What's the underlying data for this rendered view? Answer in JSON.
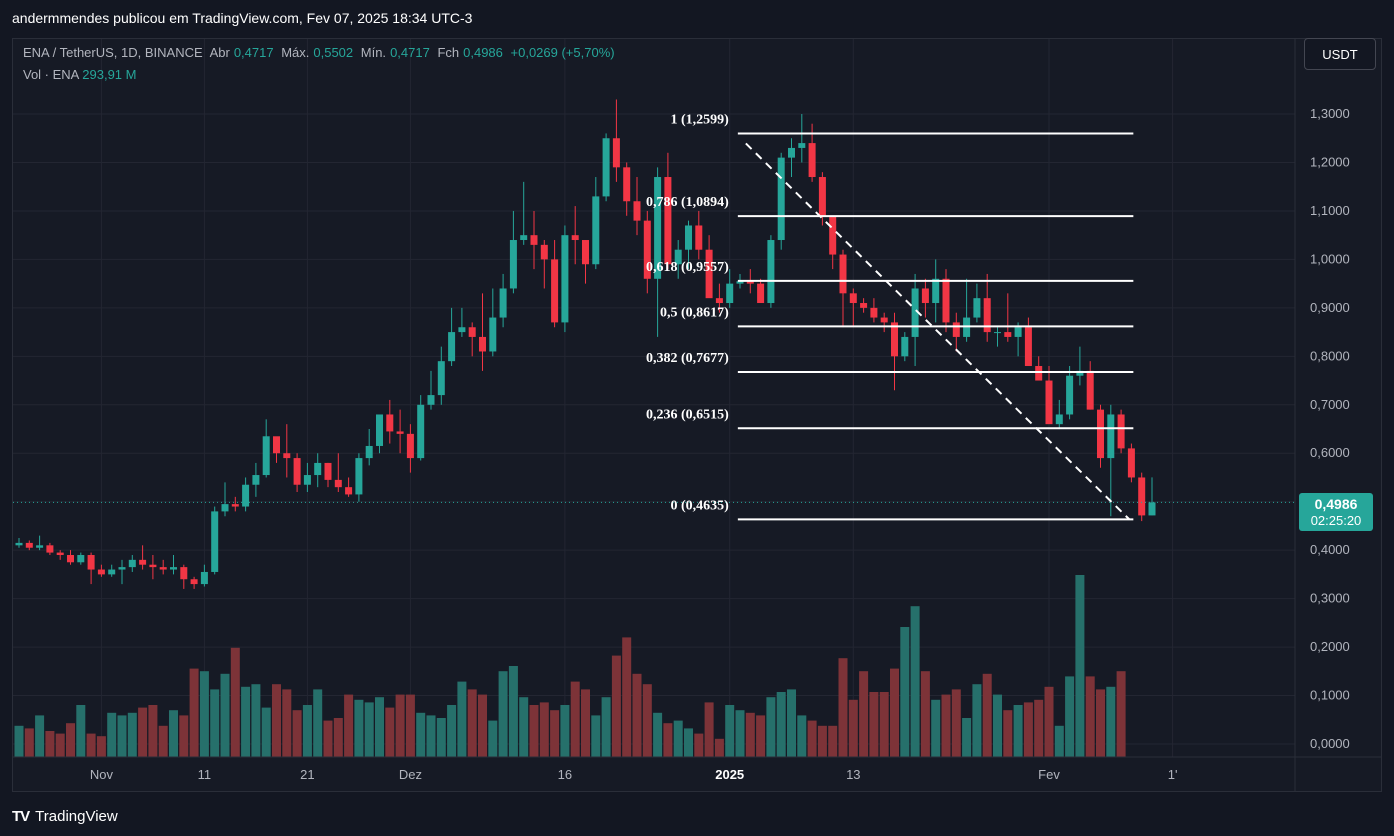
{
  "publisher_line": "andermmendes publicou em TradingView.com, Fev 07, 2025 18:34 UTC-3",
  "legend": {
    "symbol": "ENA / TetherUS, 1D, BINANCE",
    "open_label": "Abr",
    "open": "0,4717",
    "high_label": "Máx.",
    "high": "0,5502",
    "low_label": "Mín.",
    "low": "0,4717",
    "close_label": "Fch",
    "close": "0,4986",
    "change": "+0,0269 (+5,70%)",
    "vol_label": "Vol · ENA",
    "vol": "293,91 M"
  },
  "currency_button": "USDT",
  "last_price": {
    "price": "0,4986",
    "countdown": "02:25:20"
  },
  "footer": {
    "logo": "TV",
    "brand": "TradingView"
  },
  "colors": {
    "up": "#26a69a",
    "down": "#f23645",
    "vol_up": "#26706b",
    "vol_down": "#7d3338",
    "fib_line": "#ffffff"
  },
  "chart_data": {
    "type": "candlestick",
    "price_axis": {
      "min": 0,
      "max": 1.3,
      "ticks": [
        "1,3000",
        "1,2000",
        "1,1000",
        "1,0000",
        "0,9000",
        "0,8000",
        "0,7000",
        "0,6000",
        "0,5000",
        "0,4000",
        "0,3000",
        "0,2000",
        "0,1000",
        "0,0000"
      ]
    },
    "time_axis_labels": [
      {
        "label": "Nov",
        "index": 8
      },
      {
        "label": "11",
        "index": 18
      },
      {
        "label": "21",
        "index": 28
      },
      {
        "label": "Dez",
        "index": 38
      },
      {
        "label": "16",
        "index": 53
      },
      {
        "label": "2025",
        "index": 69
      },
      {
        "label": "13",
        "index": 81
      },
      {
        "label": "Fev",
        "index": 100
      },
      {
        "label": "1'",
        "index": 112
      }
    ],
    "candles_ohlc": [
      [
        0.41,
        0.425,
        0.405,
        0.415
      ],
      [
        0.415,
        0.42,
        0.4,
        0.405
      ],
      [
        0.405,
        0.43,
        0.4,
        0.41
      ],
      [
        0.41,
        0.415,
        0.39,
        0.395
      ],
      [
        0.395,
        0.4,
        0.38,
        0.39
      ],
      [
        0.39,
        0.4,
        0.37,
        0.375
      ],
      [
        0.375,
        0.395,
        0.37,
        0.39
      ],
      [
        0.39,
        0.395,
        0.33,
        0.36
      ],
      [
        0.36,
        0.37,
        0.345,
        0.35
      ],
      [
        0.35,
        0.37,
        0.345,
        0.36
      ],
      [
        0.36,
        0.38,
        0.33,
        0.365
      ],
      [
        0.365,
        0.39,
        0.355,
        0.38
      ],
      [
        0.38,
        0.41,
        0.36,
        0.37
      ],
      [
        0.37,
        0.39,
        0.34,
        0.365
      ],
      [
        0.365,
        0.38,
        0.35,
        0.36
      ],
      [
        0.36,
        0.39,
        0.35,
        0.365
      ],
      [
        0.365,
        0.37,
        0.32,
        0.34
      ],
      [
        0.34,
        0.345,
        0.32,
        0.33
      ],
      [
        0.33,
        0.37,
        0.325,
        0.355
      ],
      [
        0.355,
        0.49,
        0.35,
        0.48
      ],
      [
        0.48,
        0.54,
        0.47,
        0.495
      ],
      [
        0.495,
        0.51,
        0.48,
        0.49
      ],
      [
        0.49,
        0.55,
        0.48,
        0.535
      ],
      [
        0.535,
        0.58,
        0.51,
        0.555
      ],
      [
        0.555,
        0.67,
        0.55,
        0.635
      ],
      [
        0.635,
        0.62,
        0.58,
        0.6
      ],
      [
        0.6,
        0.66,
        0.55,
        0.59
      ],
      [
        0.59,
        0.6,
        0.52,
        0.535
      ],
      [
        0.535,
        0.58,
        0.52,
        0.555
      ],
      [
        0.555,
        0.6,
        0.53,
        0.58
      ],
      [
        0.58,
        0.58,
        0.53,
        0.545
      ],
      [
        0.545,
        0.6,
        0.52,
        0.53
      ],
      [
        0.53,
        0.55,
        0.51,
        0.515
      ],
      [
        0.515,
        0.6,
        0.5,
        0.59
      ],
      [
        0.59,
        0.65,
        0.575,
        0.615
      ],
      [
        0.615,
        0.68,
        0.6,
        0.68
      ],
      [
        0.68,
        0.71,
        0.62,
        0.645
      ],
      [
        0.645,
        0.69,
        0.6,
        0.64
      ],
      [
        0.64,
        0.66,
        0.56,
        0.59
      ],
      [
        0.59,
        0.72,
        0.585,
        0.7
      ],
      [
        0.7,
        0.77,
        0.69,
        0.72
      ],
      [
        0.72,
        0.82,
        0.7,
        0.79
      ],
      [
        0.79,
        0.9,
        0.78,
        0.85
      ],
      [
        0.85,
        0.9,
        0.84,
        0.86
      ],
      [
        0.86,
        0.87,
        0.8,
        0.84
      ],
      [
        0.84,
        0.93,
        0.77,
        0.81
      ],
      [
        0.81,
        0.94,
        0.8,
        0.88
      ],
      [
        0.88,
        0.97,
        0.86,
        0.94
      ],
      [
        0.94,
        1.1,
        0.93,
        1.04
      ],
      [
        1.04,
        1.16,
        1.03,
        1.05
      ],
      [
        1.05,
        1.1,
        0.98,
        1.03
      ],
      [
        1.03,
        1.04,
        0.94,
        1.0
      ],
      [
        1.0,
        1.04,
        0.86,
        0.87
      ],
      [
        0.87,
        1.07,
        0.85,
        1.05
      ],
      [
        1.05,
        1.11,
        0.99,
        1.04
      ],
      [
        1.04,
        1.04,
        0.95,
        0.99
      ],
      [
        0.99,
        1.17,
        0.98,
        1.13
      ],
      [
        1.13,
        1.26,
        1.12,
        1.25
      ],
      [
        1.25,
        1.33,
        1.16,
        1.19
      ],
      [
        1.19,
        1.2,
        1.09,
        1.12
      ],
      [
        1.12,
        1.17,
        1.05,
        1.08
      ],
      [
        1.08,
        1.1,
        0.93,
        0.96
      ],
      [
        0.96,
        1.19,
        0.84,
        1.17
      ],
      [
        1.17,
        1.22,
        0.98,
        0.99
      ],
      [
        0.99,
        1.04,
        0.96,
        1.02
      ],
      [
        1.02,
        1.08,
        0.98,
        1.07
      ],
      [
        1.07,
        1.1,
        1.0,
        1.02
      ],
      [
        1.02,
        1.05,
        0.94,
        0.92
      ],
      [
        0.92,
        0.95,
        0.89,
        0.91
      ],
      [
        0.91,
        0.98,
        0.9,
        0.95
      ],
      [
        0.95,
        0.97,
        0.94,
        0.955
      ],
      [
        0.955,
        0.98,
        0.93,
        0.95
      ],
      [
        0.95,
        0.96,
        0.91,
        0.91
      ],
      [
        0.91,
        1.05,
        0.9,
        1.04
      ],
      [
        1.04,
        1.22,
        1.02,
        1.21
      ],
      [
        1.21,
        1.25,
        1.17,
        1.23
      ],
      [
        1.23,
        1.3,
        1.2,
        1.24
      ],
      [
        1.24,
        1.28,
        1.16,
        1.17
      ],
      [
        1.17,
        1.18,
        1.07,
        1.09
      ],
      [
        1.09,
        1.05,
        0.98,
        1.01
      ],
      [
        1.01,
        1.02,
        0.86,
        0.93
      ],
      [
        0.93,
        0.94,
        0.86,
        0.91
      ],
      [
        0.91,
        0.92,
        0.89,
        0.9
      ],
      [
        0.9,
        0.92,
        0.87,
        0.88
      ],
      [
        0.88,
        0.89,
        0.85,
        0.87
      ],
      [
        0.87,
        0.89,
        0.73,
        0.8
      ],
      [
        0.8,
        0.85,
        0.79,
        0.84
      ],
      [
        0.84,
        0.97,
        0.78,
        0.94
      ],
      [
        0.94,
        0.96,
        0.88,
        0.91
      ],
      [
        0.91,
        1.0,
        0.87,
        0.96
      ],
      [
        0.96,
        0.98,
        0.85,
        0.87
      ],
      [
        0.87,
        0.89,
        0.81,
        0.84
      ],
      [
        0.84,
        0.96,
        0.83,
        0.88
      ],
      [
        0.88,
        0.95,
        0.87,
        0.92
      ],
      [
        0.92,
        0.97,
        0.83,
        0.85
      ],
      [
        0.85,
        0.86,
        0.82,
        0.85
      ],
      [
        0.85,
        0.93,
        0.83,
        0.84
      ],
      [
        0.84,
        0.87,
        0.8,
        0.86
      ],
      [
        0.86,
        0.88,
        0.79,
        0.78
      ],
      [
        0.78,
        0.8,
        0.76,
        0.75
      ],
      [
        0.75,
        0.78,
        0.7,
        0.66
      ],
      [
        0.66,
        0.71,
        0.65,
        0.68
      ],
      [
        0.68,
        0.78,
        0.67,
        0.76
      ],
      [
        0.76,
        0.82,
        0.74,
        0.77
      ],
      [
        0.77,
        0.79,
        0.69,
        0.69
      ],
      [
        0.69,
        0.7,
        0.57,
        0.59
      ],
      [
        0.59,
        0.7,
        0.47,
        0.68
      ],
      [
        0.68,
        0.69,
        0.6,
        0.61
      ],
      [
        0.61,
        0.62,
        0.54,
        0.55
      ],
      [
        0.55,
        0.56,
        0.46,
        0.4717
      ],
      [
        0.4717,
        0.5502,
        0.4717,
        0.4986
      ]
    ],
    "volume_axis_max": 1.3,
    "volumes": [
      0.06,
      0.055,
      0.08,
      0.05,
      0.045,
      0.065,
      0.1,
      0.045,
      0.04,
      0.085,
      0.08,
      0.085,
      0.095,
      0.1,
      0.06,
      0.09,
      0.08,
      0.17,
      0.165,
      0.13,
      0.16,
      0.21,
      0.135,
      0.14,
      0.095,
      0.14,
      0.13,
      0.09,
      0.1,
      0.13,
      0.07,
      0.075,
      0.12,
      0.11,
      0.105,
      0.115,
      0.095,
      0.12,
      0.12,
      0.085,
      0.08,
      0.075,
      0.1,
      0.145,
      0.13,
      0.12,
      0.07,
      0.165,
      0.175,
      0.115,
      0.1,
      0.105,
      0.09,
      0.1,
      0.145,
      0.13,
      0.08,
      0.115,
      0.195,
      0.23,
      0.16,
      0.14,
      0.085,
      0.065,
      0.07,
      0.055,
      0.045,
      0.105,
      0.035,
      0.1,
      0.09,
      0.085,
      0.08,
      0.115,
      0.125,
      0.13,
      0.08,
      0.07,
      0.06,
      0.06,
      0.19,
      0.11,
      0.165,
      0.125,
      0.125,
      0.17,
      0.25,
      0.29,
      0.165,
      0.11,
      0.12,
      0.13,
      0.075,
      0.14,
      0.16,
      0.12,
      0.09,
      0.1,
      0.105,
      0.11,
      0.135,
      0.06,
      0.155,
      0.35,
      0.155,
      0.13,
      0.135,
      0.165
    ],
    "fibonacci": {
      "levels": [
        {
          "ratio_label": "1 (1,2599)",
          "price": 1.2599
        },
        {
          "ratio_label": "0,786 (1,0894)",
          "price": 1.0894
        },
        {
          "ratio_label": "0,618 (0,9557)",
          "price": 0.9557
        },
        {
          "ratio_label": "0,5 (0,8617)",
          "price": 0.8617
        },
        {
          "ratio_label": "0,382 (0,7677)",
          "price": 0.7677
        },
        {
          "ratio_label": "0,236 (0,6515)",
          "price": 0.6515
        },
        {
          "ratio_label": "0 (0,4635)",
          "price": 0.4635
        }
      ],
      "start_index": 69.5,
      "end_index": 104.5
    },
    "last_price_level": 0.4986,
    "grid": true
  }
}
